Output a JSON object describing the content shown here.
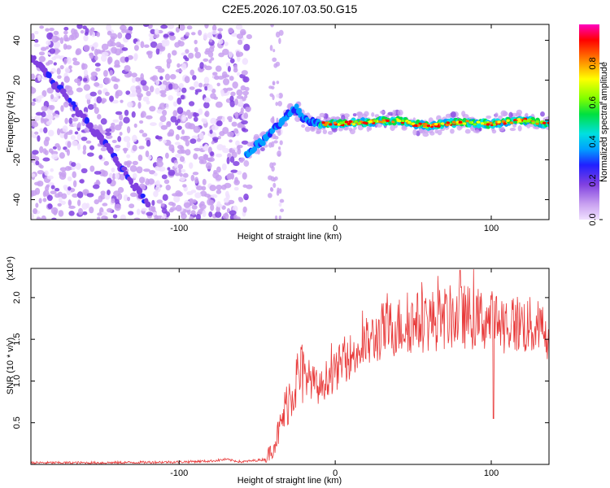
{
  "title": "C2E5.2026.107.03.50.G15",
  "chart_data": [
    {
      "type": "heatmap",
      "xlabel": "Height of straight line (km)",
      "ylabel": "Frequency (Hz)",
      "xlim": [
        -195,
        137
      ],
      "ylim": [
        -50,
        48
      ],
      "x_ticks": [
        -100,
        0,
        100
      ],
      "y_ticks": [
        -40,
        -20,
        0,
        20,
        40
      ],
      "colorbar": {
        "label": "Normalized spectral amplitude",
        "range": [
          0,
          1
        ],
        "ticks": [
          0.0,
          0.2,
          0.4,
          0.6,
          0.8
        ],
        "colormap": [
          "#f0e0ff",
          "#c8a0f0",
          "#8040e0",
          "#2020ff",
          "#00a0ff",
          "#00e0e0",
          "#00e040",
          "#80ff00",
          "#ffff00",
          "#ff8000",
          "#ff0000",
          "#ff00c0"
        ]
      },
      "features": {
        "noise_region_x": [
          -195,
          -55
        ],
        "diagonal_trace": {
          "x": [
            -195,
            -182,
            -170,
            -155,
            -140,
            -130,
            -120
          ],
          "y": [
            32,
            20,
            10,
            -5,
            -20,
            -32,
            -42
          ]
        },
        "main_trace": {
          "x": [
            -57,
            -50,
            -45,
            -40,
            -35,
            -30,
            -25,
            -20,
            -15,
            -10,
            0,
            20,
            40,
            50,
            60,
            80,
            100,
            120,
            137
          ],
          "y": [
            -18,
            -12,
            -10,
            -4,
            -2,
            3,
            6,
            0,
            -1,
            -2,
            -2,
            -1,
            0,
            -2,
            -3,
            -1,
            -2,
            0,
            -2
          ]
        }
      }
    },
    {
      "type": "line",
      "xlabel": "Height of straight line (km)",
      "ylabel": "SNR (10 * v/v)",
      "y_multiplier": "(x10⁴)",
      "xlim": [
        -195,
        137
      ],
      "ylim": [
        0,
        2.35
      ],
      "x_ticks": [
        -100,
        0,
        100
      ],
      "y_ticks": [
        0.5,
        1.0,
        1.5,
        2.0
      ],
      "color": "#e83a3a",
      "series": [
        {
          "x": [
            -195,
            -150,
            -100,
            -80,
            -70,
            -60,
            -45,
            -40,
            -35,
            -30,
            -25,
            -20,
            -15,
            -10,
            -5,
            0,
            5,
            10,
            15,
            20,
            25,
            30,
            40,
            50,
            60,
            70,
            80,
            90,
            100,
            110,
            120,
            130,
            137
          ],
          "y": [
            0.02,
            0.02,
            0.03,
            0.04,
            0.06,
            0.03,
            0.06,
            0.2,
            0.45,
            0.8,
            1.0,
            1.1,
            1.0,
            0.9,
            1.05,
            1.1,
            1.25,
            1.3,
            1.35,
            1.45,
            1.5,
            1.6,
            1.65,
            1.7,
            1.72,
            1.75,
            1.78,
            1.75,
            1.72,
            1.7,
            1.68,
            1.62,
            1.6
          ]
        }
      ]
    }
  ]
}
